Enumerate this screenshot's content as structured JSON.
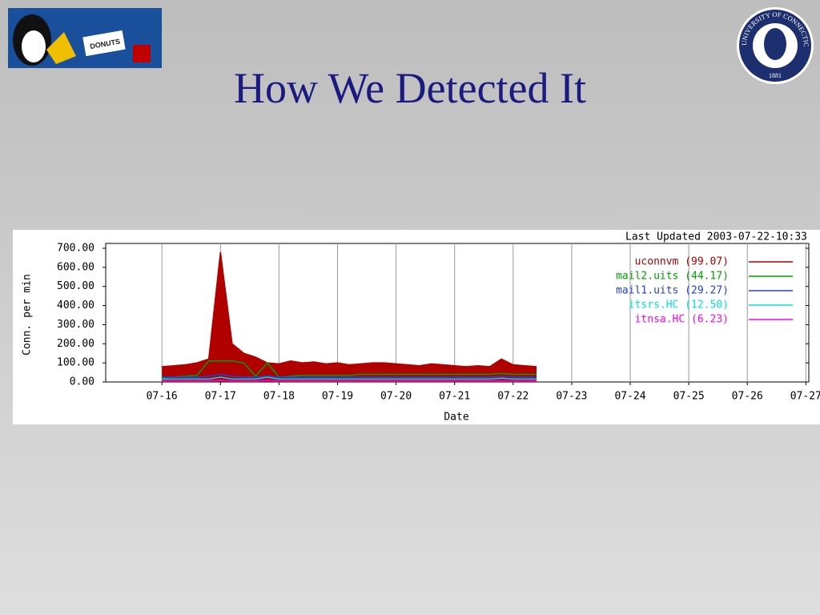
{
  "slide": {
    "title": "How We Detected It",
    "logo_left_text": "DONUTS",
    "logo_right_text": "UNIVERSITY OF CONNECTICUT",
    "logo_right_year": "1881"
  },
  "chart_data": {
    "type": "line",
    "annotation": "Last Updated 2003-07-22-10:33",
    "y_label": "Conn. per min",
    "x_label": "Date",
    "x": [
      16.0,
      16.2,
      16.4,
      16.6,
      16.8,
      17.0,
      17.2,
      17.4,
      17.6,
      17.8,
      18.0,
      18.2,
      18.4,
      18.6,
      18.8,
      19.0,
      19.2,
      19.4,
      19.6,
      19.8,
      20.0,
      20.2,
      20.4,
      20.6,
      20.8,
      21.0,
      21.2,
      21.4,
      21.6,
      21.8,
      22.0,
      22.2,
      22.4
    ],
    "series": [
      {
        "name": "uconnvm (99.07)",
        "color": "#b00000",
        "fill": true,
        "values": [
          80,
          85,
          90,
          100,
          120,
          680,
          200,
          150,
          130,
          100,
          95,
          110,
          100,
          105,
          95,
          100,
          90,
          95,
          100,
          100,
          95,
          90,
          85,
          95,
          90,
          85,
          80,
          85,
          80,
          120,
          90,
          85,
          80
        ]
      },
      {
        "name": "mail2.uits (44.17)",
        "color": "#00a000",
        "fill": false,
        "values": [
          20,
          25,
          30,
          35,
          110,
          110,
          110,
          100,
          30,
          100,
          25,
          30,
          35,
          35,
          35,
          35,
          35,
          40,
          40,
          40,
          40,
          40,
          40,
          40,
          40,
          40,
          40,
          40,
          40,
          45,
          40,
          40,
          40
        ]
      },
      {
        "name": "mail1.uits (29.27)",
        "color": "#2040e0",
        "fill": false,
        "values": [
          25,
          25,
          25,
          25,
          30,
          40,
          30,
          25,
          25,
          30,
          25,
          25,
          25,
          25,
          25,
          25,
          25,
          25,
          25,
          25,
          25,
          25,
          25,
          25,
          25,
          25,
          25,
          25,
          25,
          30,
          25,
          25,
          25
        ]
      },
      {
        "name": "itsrs.HC (12.50)",
        "color": "#00e0e0",
        "fill": false,
        "values": [
          15,
          15,
          15,
          15,
          15,
          25,
          15,
          15,
          15,
          25,
          15,
          15,
          15,
          15,
          15,
          15,
          15,
          15,
          15,
          15,
          15,
          15,
          15,
          15,
          15,
          15,
          15,
          15,
          15,
          20,
          15,
          15,
          15
        ]
      },
      {
        "name": "itnsa.HC (6.23)",
        "color": "#ff00ff",
        "fill": false,
        "values": [
          5,
          5,
          5,
          5,
          5,
          8,
          5,
          5,
          5,
          8,
          5,
          5,
          5,
          5,
          5,
          5,
          5,
          5,
          5,
          5,
          5,
          5,
          5,
          5,
          5,
          5,
          5,
          5,
          5,
          6,
          5,
          5,
          5
        ]
      }
    ],
    "xlim": [
      15.04,
      27.05
    ],
    "xticks": [
      {
        "value": 16,
        "label": "07-16"
      },
      {
        "value": 17,
        "label": "07-17"
      },
      {
        "value": 18,
        "label": "07-18"
      },
      {
        "value": 19,
        "label": "07-19"
      },
      {
        "value": 20,
        "label": "07-20"
      },
      {
        "value": 21,
        "label": "07-21"
      },
      {
        "value": 22,
        "label": "07-22"
      },
      {
        "value": 23,
        "label": "07-23"
      },
      {
        "value": 24,
        "label": "07-24"
      },
      {
        "value": 25,
        "label": "07-25"
      },
      {
        "value": 26,
        "label": "07-26"
      },
      {
        "value": 27,
        "label": "07-27"
      }
    ],
    "ylim": [
      0,
      700
    ],
    "yticks": [
      {
        "value": 0,
        "label": "0.00"
      },
      {
        "value": 100,
        "label": "100.00"
      },
      {
        "value": 200,
        "label": "200.00"
      },
      {
        "value": 300,
        "label": "300.00"
      },
      {
        "value": 400,
        "label": "400.00"
      },
      {
        "value": 500,
        "label": "500.00"
      },
      {
        "value": 600,
        "label": "600.00"
      },
      {
        "value": 700,
        "label": "700.00"
      }
    ],
    "grid": "x",
    "legend": "upper right"
  }
}
